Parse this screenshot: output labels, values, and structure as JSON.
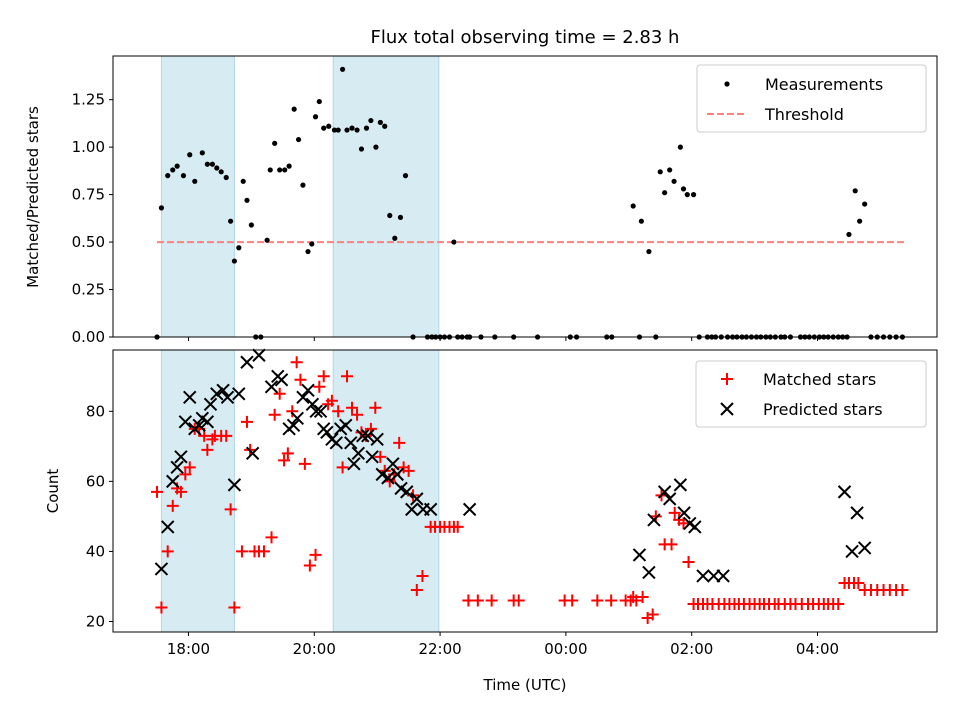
{
  "figure": {
    "title": "Flux total observing time = 2.83 h"
  },
  "colors": {
    "shade": "#add8e6",
    "measurement": "#000000",
    "threshold": "#ff8080",
    "matched": "#ff0000",
    "predicted": "#000000"
  },
  "chart_data": [
    {
      "type": "scatter",
      "title": "Flux total observing time = 2.83 h",
      "xlabel": "",
      "ylabel": "Matched/Predicted stars",
      "xlim": [
        -1.2,
        11.9
      ],
      "ylim": [
        0,
        1.48
      ],
      "yticks": [
        0.0,
        0.25,
        0.5,
        0.75,
        1.0,
        1.25
      ],
      "ytick_labels": [
        "0.00",
        "0.25",
        "0.50",
        "0.75",
        "1.00",
        "1.25"
      ],
      "xticks": [
        0,
        2,
        4,
        6,
        8,
        10
      ],
      "xtick_labels": [],
      "grid": false,
      "legend": "top-right",
      "shaded_spans": [
        [
          -0.43,
          0.73
        ],
        [
          2.3,
          3.98
        ]
      ],
      "threshold": {
        "name": "Threshold",
        "y": 0.5,
        "x_range": [
          -0.5,
          11.4
        ]
      },
      "series": [
        {
          "name": "Measurements",
          "x": [
            -0.5,
            -0.43,
            -0.33,
            -0.25,
            -0.18,
            -0.08,
            0.02,
            0.1,
            0.22,
            0.3,
            0.38,
            0.45,
            0.52,
            0.6,
            0.67,
            0.73,
            0.8,
            0.87,
            0.93,
            1.0,
            1.07,
            1.15,
            1.25,
            1.3,
            1.37,
            1.45,
            1.53,
            1.6,
            1.68,
            1.75,
            1.82,
            1.9,
            1.96,
            2.02,
            2.08,
            2.15,
            2.23,
            2.32,
            2.38,
            2.45,
            2.52,
            2.6,
            2.68,
            2.75,
            2.83,
            2.9,
            2.98,
            3.05,
            3.12,
            3.2,
            3.28,
            3.37,
            3.45,
            3.57,
            3.8,
            3.87,
            3.93,
            4.0,
            4.07,
            4.15,
            4.22,
            4.28,
            4.35,
            4.43,
            4.47,
            4.65,
            4.87,
            5.17,
            5.55,
            6.07,
            6.17,
            6.65,
            6.73,
            7.07,
            7.17,
            7.2,
            7.32,
            7.43,
            7.5,
            7.57,
            7.65,
            7.72,
            7.82,
            7.87,
            7.93,
            8.03,
            8.12,
            8.25,
            8.32,
            8.38,
            8.47,
            8.57,
            8.65,
            8.72,
            8.8,
            8.87,
            8.95,
            9.03,
            9.1,
            9.18,
            9.25,
            9.33,
            9.42,
            9.48,
            9.57,
            9.73,
            9.8,
            9.87,
            9.95,
            10.03,
            10.1,
            10.17,
            10.25,
            10.33,
            10.4,
            10.47,
            10.5,
            10.6,
            10.67,
            10.75,
            10.85,
            10.95,
            11.05,
            11.15,
            11.25,
            11.35
          ],
          "y": [
            0.0,
            0.68,
            0.85,
            0.88,
            0.9,
            0.85,
            0.96,
            0.82,
            0.97,
            0.91,
            0.91,
            0.89,
            0.87,
            0.84,
            0.61,
            0.4,
            0.47,
            0.82,
            0.72,
            0.59,
            0.0,
            0.0,
            0.51,
            0.88,
            1.02,
            0.88,
            0.88,
            0.9,
            1.2,
            1.04,
            0.8,
            0.45,
            0.49,
            1.16,
            1.24,
            1.1,
            1.11,
            1.09,
            1.09,
            1.41,
            1.09,
            1.1,
            1.09,
            0.99,
            1.1,
            1.14,
            1.0,
            1.13,
            1.11,
            0.64,
            0.52,
            0.63,
            0.85,
            0.0,
            0.0,
            0.0,
            0.0,
            0.0,
            0.0,
            0.0,
            0.5,
            0.0,
            0.0,
            0.0,
            0.0,
            0.0,
            0.0,
            0.0,
            0.0,
            0.0,
            0.0,
            0.0,
            0.0,
            0.69,
            0.0,
            0.61,
            0.45,
            0.0,
            0.87,
            0.76,
            0.88,
            0.82,
            1.0,
            0.78,
            0.75,
            0.75,
            0.0,
            0.0,
            0.0,
            0.0,
            0.0,
            0.0,
            0.0,
            0.0,
            0.0,
            0.0,
            0.0,
            0.0,
            0.0,
            0.0,
            0.0,
            0.0,
            0.0,
            0.0,
            0.0,
            0.0,
            0.0,
            0.0,
            0.0,
            0.0,
            0.0,
            0.0,
            0.0,
            0.0,
            0.0,
            0.0,
            0.54,
            0.77,
            0.61,
            0.7,
            0.0,
            0.0,
            0.0,
            0.0,
            0.0,
            0.0
          ]
        }
      ]
    },
    {
      "type": "scatter",
      "title": "",
      "xlabel": "Time (UTC)",
      "ylabel": "Count",
      "xlim": [
        -1.2,
        11.9
      ],
      "ylim": [
        17,
        97.5
      ],
      "yticks": [
        20,
        40,
        60,
        80
      ],
      "ytick_labels": [
        "20",
        "40",
        "60",
        "80"
      ],
      "xticks": [
        0,
        2,
        4,
        6,
        8,
        10
      ],
      "xtick_labels": [
        "18:00",
        "20:00",
        "22:00",
        "00:00",
        "02:00",
        "04:00"
      ],
      "grid": false,
      "legend": "top-right",
      "shaded_spans": [
        [
          -0.43,
          0.73
        ],
        [
          2.3,
          3.98
        ]
      ],
      "series": [
        {
          "name": "Matched stars",
          "marker": "+",
          "x": [
            -0.5,
            -0.43,
            -0.33,
            -0.25,
            -0.18,
            -0.12,
            -0.05,
            0.02,
            0.1,
            0.17,
            0.25,
            0.3,
            0.38,
            0.42,
            0.52,
            0.6,
            0.67,
            0.73,
            0.85,
            0.93,
            0.98,
            1.05,
            1.12,
            1.2,
            1.32,
            1.37,
            1.45,
            1.52,
            1.58,
            1.65,
            1.72,
            1.78,
            1.85,
            1.93,
            2.02,
            2.08,
            2.15,
            2.22,
            2.28,
            2.38,
            2.45,
            2.52,
            2.6,
            2.68,
            2.75,
            2.82,
            2.9,
            2.97,
            3.05,
            3.12,
            3.2,
            3.27,
            3.35,
            3.42,
            3.5,
            3.57,
            3.63,
            3.72,
            3.85,
            3.92,
            4.0,
            4.07,
            4.15,
            4.22,
            4.28,
            4.45,
            4.6,
            4.82,
            5.17,
            5.25,
            5.98,
            6.1,
            6.5,
            6.72,
            6.95,
            7.03,
            7.07,
            7.12,
            7.22,
            7.3,
            7.38,
            7.43,
            7.52,
            7.57,
            7.68,
            7.73,
            7.8,
            7.87,
            7.95,
            8.03,
            8.1,
            8.18,
            8.25,
            8.33,
            8.43,
            8.52,
            8.6,
            8.68,
            8.75,
            8.83,
            8.92,
            9.0,
            9.08,
            9.15,
            9.23,
            9.32,
            9.38,
            9.48,
            9.57,
            9.65,
            9.75,
            9.85,
            9.93,
            10.02,
            10.1,
            10.17,
            10.25,
            10.33,
            10.43,
            10.5,
            10.58,
            10.65,
            10.75,
            10.85,
            10.95,
            11.05,
            11.15,
            11.25,
            11.35
          ],
          "y": [
            57,
            24,
            40,
            53,
            58,
            57,
            62,
            64,
            75,
            75,
            73,
            69,
            72,
            73,
            73,
            73,
            52,
            24,
            40,
            77,
            69,
            40,
            40,
            40,
            44,
            79,
            85,
            66,
            68,
            80,
            94,
            89,
            65,
            36,
            39,
            87,
            90,
            82,
            83,
            80,
            64,
            90,
            81,
            79,
            74,
            73,
            75,
            81,
            67,
            63,
            60,
            62,
            71,
            64,
            63,
            56,
            29,
            33,
            47,
            47,
            47,
            47,
            47,
            47,
            47,
            26,
            26,
            26,
            26,
            26,
            26,
            26,
            26,
            26,
            26,
            26,
            27,
            26,
            27,
            21,
            22,
            50,
            56,
            42,
            42,
            51,
            49,
            48,
            37,
            25,
            25,
            25,
            25,
            25,
            25,
            25,
            25,
            25,
            25,
            25,
            25,
            25,
            25,
            25,
            25,
            25,
            25,
            25,
            25,
            25,
            25,
            25,
            25,
            25,
            25,
            25,
            25,
            25,
            31,
            31,
            31,
            31,
            29,
            29,
            29,
            29,
            29,
            29,
            29
          ]
        },
        {
          "name": "Predicted stars",
          "marker": "x",
          "x": [
            -0.43,
            -0.33,
            -0.25,
            -0.18,
            -0.12,
            -0.05,
            0.02,
            0.1,
            0.17,
            0.22,
            0.3,
            0.35,
            0.45,
            0.55,
            0.62,
            0.73,
            0.8,
            0.93,
            1.02,
            1.12,
            1.32,
            1.42,
            1.48,
            1.6,
            1.67,
            1.73,
            1.82,
            1.9,
            1.97,
            2.03,
            2.1,
            2.15,
            2.2,
            2.28,
            2.35,
            2.42,
            2.5,
            2.58,
            2.63,
            2.7,
            2.77,
            2.85,
            2.92,
            3.0,
            3.08,
            3.17,
            3.25,
            3.32,
            3.38,
            3.47,
            3.55,
            3.63,
            3.73,
            3.85,
            4.47,
            7.17,
            7.32,
            7.4,
            7.57,
            7.65,
            7.82,
            7.88,
            7.97,
            8.05,
            8.18,
            8.35,
            8.5,
            10.43,
            10.55,
            10.63,
            10.75
          ],
          "y": [
            35,
            47,
            60,
            64,
            67,
            77,
            84,
            75,
            76,
            78,
            77,
            82,
            85,
            86,
            84,
            59,
            85,
            94,
            68,
            96,
            87,
            90,
            89,
            75,
            76,
            78,
            84,
            86,
            82,
            80,
            80,
            75,
            74,
            72,
            71,
            75,
            76,
            71,
            65,
            68,
            73,
            73,
            67,
            72,
            62,
            61,
            65,
            62,
            58,
            57,
            52,
            55,
            52,
            52,
            52,
            39,
            34,
            49,
            57,
            55,
            59,
            51,
            48,
            47,
            33,
            33,
            33,
            57,
            40,
            51,
            41
          ]
        }
      ]
    }
  ]
}
